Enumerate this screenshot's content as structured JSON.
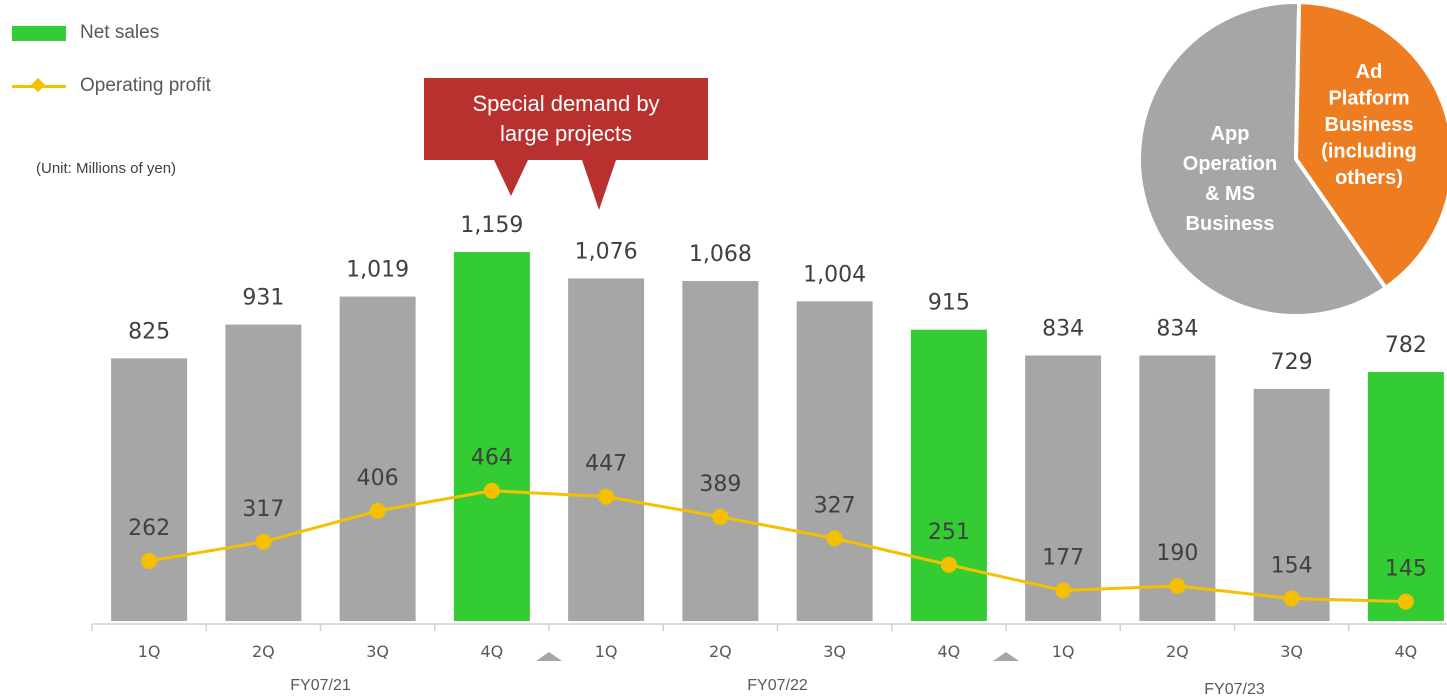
{
  "legend": {
    "net_sales": "Net sales",
    "operating_profit": "Operating profit"
  },
  "unit_note": "(Unit: Millions of yen)",
  "callout": {
    "line1": "Special demand by",
    "line2": "large projects"
  },
  "colors": {
    "bar_gray": "#a6a6a6",
    "bar_green": "#33cc33",
    "line_yellow": "#f5c000",
    "callout_red": "#b8312f",
    "pie_gray": "#a6a6a6",
    "pie_orange": "#ee7d22",
    "label_text": "#404040",
    "axis": "#d0d0d0"
  },
  "pie": {
    "slices": [
      {
        "label_lines": [
          "App",
          "Operation",
          "& MS",
          "Business"
        ],
        "value": 60,
        "color": "#a6a6a6"
      },
      {
        "label_lines": [
          "Ad",
          "Platform",
          "Business",
          "(including",
          "others)"
        ],
        "value": 40,
        "color": "#ee7d22"
      }
    ]
  },
  "chart_data": {
    "type": "bar",
    "categories": [
      "1Q",
      "2Q",
      "3Q",
      "4Q",
      "1Q",
      "2Q",
      "3Q",
      "4Q",
      "1Q",
      "2Q",
      "3Q",
      "4Q"
    ],
    "groups": [
      {
        "label": "FY07/21",
        "span": [
          0,
          3
        ]
      },
      {
        "label": "FY07/22",
        "span": [
          4,
          7
        ]
      },
      {
        "label": "FY07/23",
        "span": [
          8,
          11
        ]
      }
    ],
    "series": [
      {
        "name": "Net sales",
        "type": "bar",
        "values": [
          825,
          931,
          1019,
          1159,
          1076,
          1068,
          1004,
          915,
          834,
          834,
          729,
          782
        ],
        "labels": [
          "825",
          "931",
          "1,019",
          "1,159",
          "1,076",
          "1,068",
          "1,004",
          "915",
          "834",
          "834",
          "729",
          "782"
        ],
        "highlight": [
          false,
          false,
          false,
          true,
          false,
          false,
          false,
          true,
          false,
          false,
          false,
          true
        ]
      },
      {
        "name": "Operating profit",
        "type": "line",
        "values": [
          262,
          317,
          406,
          464,
          447,
          389,
          327,
          251,
          177,
          190,
          154,
          145
        ],
        "labels": [
          "262",
          "317",
          "406",
          "464",
          "447",
          "389",
          "327",
          "251",
          "177",
          "190",
          "154",
          "145"
        ]
      }
    ],
    "ylim": [
      0,
      1300
    ]
  }
}
